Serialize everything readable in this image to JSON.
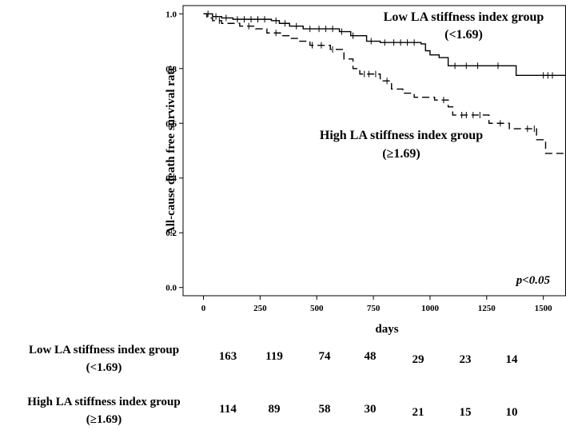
{
  "chart_data": {
    "type": "line",
    "subtype": "kaplan-meier",
    "xlabel": "days",
    "ylabel": "All-cause death free survival rate",
    "xlim": [
      -90,
      1600
    ],
    "ylim": [
      -0.03,
      1.03
    ],
    "xticks": [
      0,
      250,
      500,
      750,
      1000,
      1250,
      1500
    ],
    "xtick_labels": [
      "0",
      "250",
      "500",
      "750",
      "1000",
      "1250",
      "1500"
    ],
    "yticks": [
      0.0,
      0.2,
      0.4,
      0.6,
      0.8,
      1.0
    ],
    "ytick_labels": [
      "0.0",
      "0.2",
      "0.4",
      "0.6",
      "0.8",
      "1.0"
    ],
    "p_value_text": "p<0.05",
    "series": [
      {
        "name": "Low LA stiffness index group",
        "label_line1": "Low LA stiffness index group",
        "label_line2": "(<1.69)",
        "line_style": "solid",
        "steps": [
          [
            0,
            1.0
          ],
          [
            40,
            0.99
          ],
          [
            80,
            0.985
          ],
          [
            130,
            0.98
          ],
          [
            300,
            0.975
          ],
          [
            335,
            0.965
          ],
          [
            380,
            0.955
          ],
          [
            440,
            0.945
          ],
          [
            600,
            0.935
          ],
          [
            650,
            0.92
          ],
          [
            720,
            0.9
          ],
          [
            780,
            0.895
          ],
          [
            960,
            0.89
          ],
          [
            980,
            0.865
          ],
          [
            1000,
            0.85
          ],
          [
            1040,
            0.84
          ],
          [
            1080,
            0.81
          ],
          [
            1380,
            0.775
          ],
          [
            1600,
            0.775
          ]
        ],
        "censor_days": [
          20,
          55,
          100,
          150,
          180,
          210,
          240,
          270,
          320,
          360,
          410,
          470,
          510,
          540,
          570,
          610,
          660,
          740,
          800,
          840,
          870,
          900,
          930,
          1110,
          1160,
          1210,
          1300,
          1500,
          1520,
          1540
        ]
      },
      {
        "name": "High LA stiffness index group",
        "label_line1": "High LA stiffness index group",
        "label_line2": "(≥1.69)",
        "line_style": "dashed",
        "steps": [
          [
            0,
            1.0
          ],
          [
            15,
            0.985
          ],
          [
            40,
            0.975
          ],
          [
            80,
            0.965
          ],
          [
            160,
            0.955
          ],
          [
            230,
            0.945
          ],
          [
            280,
            0.93
          ],
          [
            340,
            0.92
          ],
          [
            380,
            0.91
          ],
          [
            420,
            0.9
          ],
          [
            470,
            0.885
          ],
          [
            560,
            0.87
          ],
          [
            620,
            0.835
          ],
          [
            660,
            0.8
          ],
          [
            690,
            0.78
          ],
          [
            780,
            0.755
          ],
          [
            830,
            0.725
          ],
          [
            880,
            0.71
          ],
          [
            930,
            0.695
          ],
          [
            1020,
            0.685
          ],
          [
            1080,
            0.66
          ],
          [
            1100,
            0.63
          ],
          [
            1260,
            0.6
          ],
          [
            1350,
            0.58
          ],
          [
            1470,
            0.54
          ],
          [
            1510,
            0.49
          ],
          [
            1600,
            0.49
          ]
        ],
        "censor_days": [
          70,
          200,
          320,
          480,
          520,
          570,
          710,
          730,
          760,
          810,
          1060,
          1140,
          1160,
          1190,
          1220,
          1310,
          1430,
          1460
        ]
      }
    ],
    "risk_table": {
      "time_points": [
        0,
        250,
        500,
        750,
        1000,
        1250,
        1500
      ],
      "rows": [
        {
          "label_line1": "Low LA stiffness index group",
          "label_line2": "(<1.69)",
          "counts": [
            "163",
            "119",
            "74",
            "48",
            "29",
            "23",
            "14"
          ]
        },
        {
          "label_line1": "High LA stiffness index group",
          "label_line2": "(≥1.69)",
          "counts": [
            "114",
            "89",
            "58",
            "30",
            "21",
            "15",
            "10"
          ]
        }
      ]
    }
  }
}
